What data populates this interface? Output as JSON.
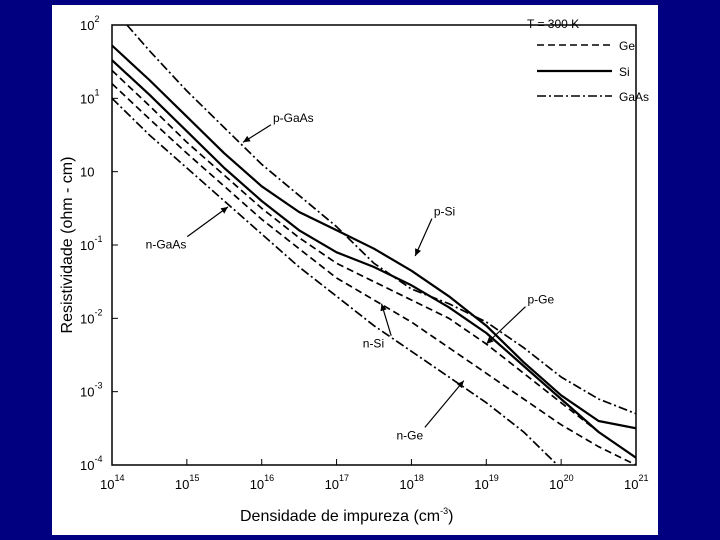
{
  "chart_data": {
    "type": "line",
    "title": "",
    "xlabel": "Densidade de impureza (cm",
    "xlabel_sup": "-3",
    "xlabel_end": ")",
    "ylabel": "Resistividade (ohm - cm)",
    "xscale": "log",
    "yscale": "log",
    "xlim_exp": [
      14,
      21
    ],
    "ylim_exp": [
      -4,
      2
    ],
    "x_ticks": [
      {
        "base": "10",
        "exp": "14"
      },
      {
        "base": "10",
        "exp": "15"
      },
      {
        "base": "10",
        "exp": "16"
      },
      {
        "base": "10",
        "exp": "17"
      },
      {
        "base": "10",
        "exp": "18"
      },
      {
        "base": "10",
        "exp": "19"
      },
      {
        "base": "10",
        "exp": "20"
      },
      {
        "base": "10",
        "exp": "21"
      }
    ],
    "y_ticks": [
      {
        "base": "10",
        "exp": "2"
      },
      {
        "base": "10",
        "exp": "1"
      },
      {
        "base": "10",
        "exp": ""
      },
      {
        "base": "10",
        "exp": "-1"
      },
      {
        "base": "10",
        "exp": "-2"
      },
      {
        "base": "10",
        "exp": "-3"
      },
      {
        "base": "10",
        "exp": "-4"
      }
    ],
    "legend": {
      "title": "T = 300 K",
      "position": "top-right",
      "entries": [
        {
          "name": "Ge",
          "style": "dashed"
        },
        {
          "name": "Si",
          "style": "solid"
        },
        {
          "name": "GaAs",
          "style": "dashdot"
        }
      ]
    },
    "series": [
      {
        "name": "p-GaAs",
        "style": "dashdot",
        "points": [
          [
            14.2,
            2
          ],
          [
            14.5,
            1.65
          ],
          [
            15,
            1.1
          ],
          [
            16,
            0.1
          ],
          [
            17,
            -0.75
          ],
          [
            17.5,
            -1.25
          ],
          [
            18,
            -1.6
          ],
          [
            18.5,
            -1.8
          ],
          [
            19,
            -2.05
          ],
          [
            19.5,
            -2.4
          ],
          [
            20,
            -2.8
          ],
          [
            20.5,
            -3.1
          ],
          [
            21,
            -3.3
          ]
        ]
      },
      {
        "name": "p-Si",
        "style": "solid",
        "points": [
          [
            14,
            1.72
          ],
          [
            14.5,
            1.25
          ],
          [
            15,
            0.75
          ],
          [
            15.5,
            0.25
          ],
          [
            16,
            -0.2
          ],
          [
            16.5,
            -0.55
          ],
          [
            17,
            -0.8
          ],
          [
            17.5,
            -1.05
          ],
          [
            18,
            -1.35
          ],
          [
            18.5,
            -1.7
          ],
          [
            19,
            -2.1
          ],
          [
            19.5,
            -2.6
          ],
          [
            20,
            -3.05
          ],
          [
            20.5,
            -3.4
          ],
          [
            21,
            -3.5
          ]
        ]
      },
      {
        "name": "n-Si",
        "style": "solid",
        "points": [
          [
            14,
            1.52
          ],
          [
            14.5,
            1.05
          ],
          [
            15,
            0.55
          ],
          [
            15.5,
            0.05
          ],
          [
            16,
            -0.4
          ],
          [
            16.5,
            -0.8
          ],
          [
            17,
            -1.1
          ],
          [
            17.5,
            -1.3
          ],
          [
            18,
            -1.55
          ],
          [
            18.5,
            -1.85
          ],
          [
            19,
            -2.2
          ],
          [
            19.5,
            -2.65
          ],
          [
            20,
            -3.1
          ],
          [
            20.5,
            -3.55
          ],
          [
            21,
            -3.9
          ]
        ]
      },
      {
        "name": "p-Ge",
        "style": "dashed",
        "points": [
          [
            14,
            1.38
          ],
          [
            14.5,
            0.9
          ],
          [
            15,
            0.4
          ],
          [
            15.5,
            -0.05
          ],
          [
            16,
            -0.5
          ],
          [
            16.5,
            -0.9
          ],
          [
            17,
            -1.25
          ],
          [
            17.5,
            -1.5
          ],
          [
            18,
            -1.75
          ],
          [
            18.5,
            -2.0
          ],
          [
            19,
            -2.35
          ],
          [
            19.5,
            -2.75
          ],
          [
            20,
            -3.15
          ],
          [
            20.5,
            -3.55
          ],
          [
            21,
            -3.9
          ]
        ]
      },
      {
        "name": "n-Ge",
        "style": "dashed",
        "points": [
          [
            14,
            1.2
          ],
          [
            14.5,
            0.72
          ],
          [
            15,
            0.25
          ],
          [
            15.5,
            -0.2
          ],
          [
            16,
            -0.65
          ],
          [
            16.5,
            -1.05
          ],
          [
            17,
            -1.45
          ],
          [
            17.5,
            -1.75
          ],
          [
            18,
            -2.05
          ],
          [
            18.5,
            -2.4
          ],
          [
            19,
            -2.75
          ],
          [
            19.5,
            -3.1
          ],
          [
            20,
            -3.45
          ],
          [
            20.5,
            -3.75
          ],
          [
            21,
            -4.0
          ]
        ]
      },
      {
        "name": "n-GaAs",
        "style": "dashdot",
        "points": [
          [
            14,
            1.0
          ],
          [
            14.5,
            0.5
          ],
          [
            15,
            0.05
          ],
          [
            15.5,
            -0.4
          ],
          [
            16,
            -0.85
          ],
          [
            16.5,
            -1.3
          ],
          [
            17,
            -1.7
          ],
          [
            17.5,
            -2.1
          ],
          [
            18,
            -2.45
          ],
          [
            18.5,
            -2.8
          ],
          [
            19,
            -3.15
          ],
          [
            19.5,
            -3.55
          ],
          [
            19.95,
            -4.0
          ]
        ]
      }
    ],
    "annotations": [
      {
        "text": "p-GaAs",
        "at": [
          16.15,
          0.68
        ],
        "arrow_to": [
          15.75,
          0.4
        ]
      },
      {
        "text": "p-Si",
        "at": [
          18.3,
          -0.6
        ],
        "arrow_to": [
          18.05,
          -1.15
        ]
      },
      {
        "text": "n-GaAs",
        "at": [
          14.45,
          -1.05
        ],
        "arrow_to": [
          15.55,
          -0.48
        ]
      },
      {
        "text": "n-Si",
        "at": [
          17.35,
          -2.4
        ],
        "arrow_to": [
          17.6,
          -1.8
        ]
      },
      {
        "text": "p-Ge",
        "at": [
          19.55,
          -1.8
        ],
        "arrow_to": [
          19.0,
          -2.35
        ]
      },
      {
        "text": "n-Ge",
        "at": [
          17.8,
          -3.65
        ],
        "arrow_to": [
          18.7,
          -2.85
        ]
      }
    ]
  }
}
